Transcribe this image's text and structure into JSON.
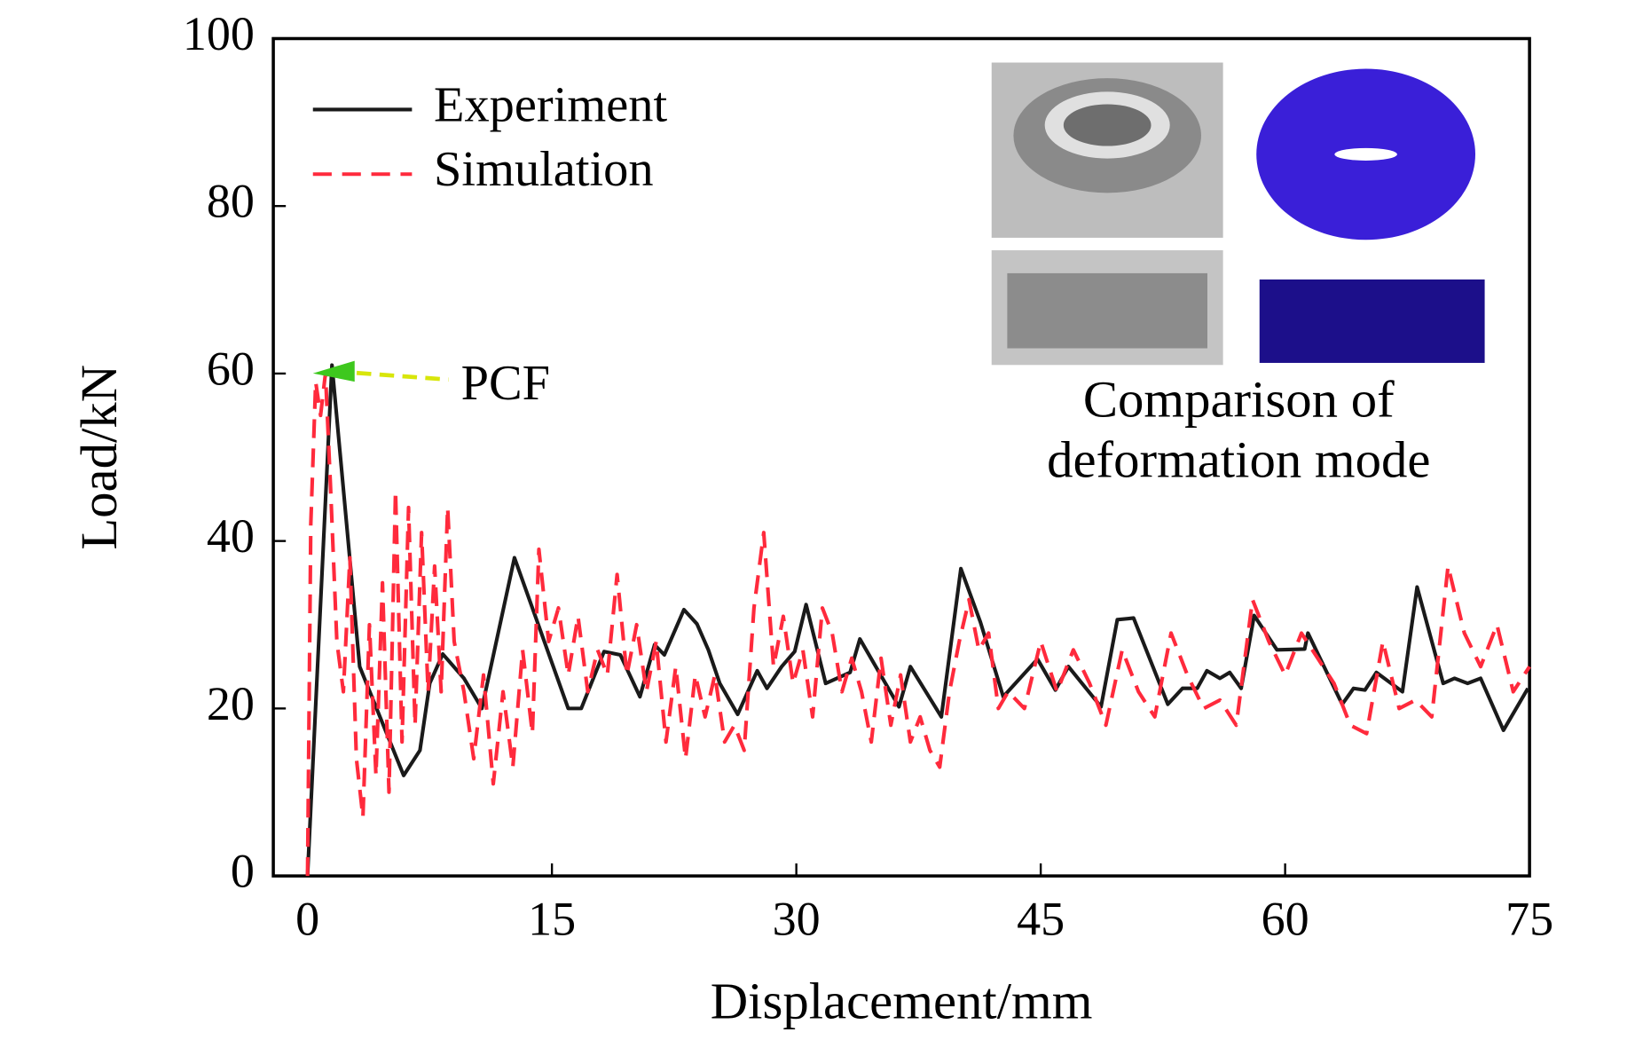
{
  "chart_data": {
    "type": "line",
    "xlabel": "Displacement/mm",
    "ylabel": "Load/kN",
    "xlim": [
      -2.1,
      75
    ],
    "xticks": [
      0,
      15,
      30,
      45,
      60,
      75
    ],
    "ylim": [
      0,
      100
    ],
    "yticks": [
      0,
      20,
      40,
      60,
      80,
      100
    ],
    "legend": "upper left",
    "grid": false,
    "annotations": [
      "PCF",
      "Comparison of",
      "deformation mode"
    ],
    "series": [
      {
        "name": "Experiment",
        "color": "#1a1a1a",
        "style": "solid",
        "x": [
          0,
          1.5,
          2.4,
          3.2,
          5.9,
          6.9,
          7.5,
          8.3,
          9.6,
          10.7,
          12.7,
          16,
          16.8,
          18.2,
          19.2,
          20.4,
          21.3,
          21.9,
          23.1,
          23.9,
          24.6,
          25.3,
          26.4,
          27.6,
          28.2,
          29.1,
          29.9,
          30.6,
          31.8,
          33.3,
          33.9,
          36.3,
          37,
          38.9,
          40.1,
          41.3,
          42.7,
          44.8,
          45.9,
          46.7,
          48.7,
          49.7,
          50.7,
          52.8,
          53.7,
          54.6,
          55.2,
          56,
          56.6,
          57.3,
          58.1,
          59.5,
          61.2,
          61.4,
          63.5,
          64.2,
          64.9,
          65.6,
          67.2,
          68.1,
          69.7,
          70.4,
          71.2,
          72,
          73.4,
          74.9
        ],
        "values": [
          0,
          61,
          42,
          25,
          12,
          15,
          23,
          26.5,
          23.6,
          20,
          38,
          20,
          20,
          26.8,
          26.4,
          21.4,
          27.6,
          26.4,
          31.8,
          30.1,
          27,
          23,
          19.3,
          24.5,
          22.4,
          25,
          26.8,
          32.4,
          23,
          24.3,
          28.3,
          20.2,
          25,
          19,
          36.7,
          30.3,
          21.4,
          25.9,
          22.2,
          25,
          20.2,
          30.6,
          30.8,
          20.5,
          22.4,
          22.4,
          24.5,
          23.6,
          24.3,
          22.4,
          31.1,
          27,
          27.1,
          29,
          20.5,
          22.4,
          22.2,
          24.3,
          22,
          34.5,
          23,
          23.6,
          23,
          23.6,
          17.4,
          22.4
        ]
      },
      {
        "name": "Simulation",
        "color": "#ff2a3c",
        "style": "dashed",
        "x": [
          0,
          0.2,
          0.5,
          0.8,
          1.1,
          1.4,
          1.8,
          2.2,
          2.6,
          3,
          3.4,
          3.8,
          4.2,
          4.6,
          5,
          5.4,
          5.8,
          6.2,
          6.6,
          7,
          7.4,
          7.8,
          8.2,
          8.6,
          9,
          9.6,
          10.2,
          10.8,
          11.4,
          12,
          12.6,
          13.2,
          13.8,
          14.2,
          14.8,
          15.4,
          16,
          16.6,
          17.2,
          17.8,
          18.4,
          19,
          19.6,
          20.2,
          20.8,
          21.4,
          22,
          22.6,
          23.2,
          23.8,
          24.4,
          25,
          25.6,
          26.2,
          26.8,
          27.4,
          28,
          28.6,
          29.2,
          29.8,
          30.4,
          31,
          31.6,
          32.2,
          32.8,
          33.4,
          34,
          34.6,
          35.2,
          35.8,
          36.4,
          37,
          37.6,
          38.2,
          38.8,
          39.4,
          40,
          40.6,
          41.2,
          41.8,
          42.4,
          43,
          44,
          45,
          46,
          47,
          48,
          49,
          50,
          51,
          52,
          53,
          54,
          55,
          56,
          57,
          58,
          59,
          60,
          61,
          62,
          63,
          64,
          65,
          66,
          67,
          68,
          69,
          70,
          71,
          72,
          73,
          74,
          75
        ],
        "values": [
          0,
          42,
          59,
          55,
          60,
          47,
          28,
          22,
          38,
          14,
          7,
          30,
          12,
          35,
          10,
          46,
          16,
          44,
          18,
          41,
          22,
          37,
          22,
          44,
          28,
          22,
          14,
          24,
          11,
          22,
          13,
          27,
          17,
          39,
          28,
          32,
          24,
          31,
          22,
          27,
          24,
          36,
          24,
          30,
          22,
          28,
          16,
          25,
          14,
          24,
          19,
          24,
          16,
          18,
          15,
          32,
          41,
          25,
          31,
          23,
          27,
          19,
          32,
          29,
          22,
          26,
          22,
          16,
          26,
          18,
          24,
          16,
          19,
          15,
          13,
          22,
          28,
          33,
          27,
          29,
          20,
          22,
          20,
          28,
          22,
          27,
          23,
          18,
          27,
          22,
          19,
          29,
          24,
          20,
          21,
          18,
          33,
          28,
          24,
          29,
          26,
          23,
          18,
          17,
          28,
          20,
          21,
          19,
          37,
          29,
          25,
          30,
          22,
          25
        ]
      }
    ]
  }
}
